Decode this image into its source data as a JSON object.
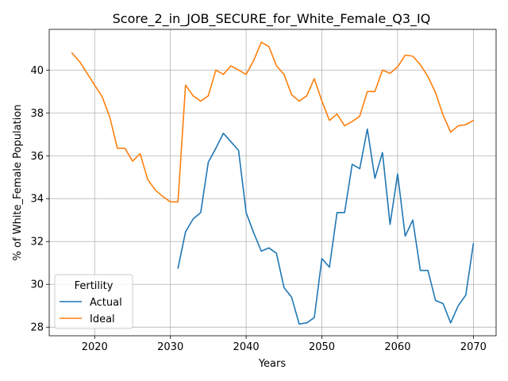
{
  "chart_data": {
    "type": "line",
    "title": "Score_2_in_JOB_SECURE_for_White_Female_Q3_IQ",
    "xlabel": "Years",
    "ylabel": "% of White_Female Population",
    "xlim": [
      2014,
      2073
    ],
    "ylim": [
      27.6,
      41.9
    ],
    "xticks": [
      2020,
      2030,
      2040,
      2050,
      2060,
      2070
    ],
    "yticks": [
      28,
      30,
      32,
      34,
      36,
      38,
      40
    ],
    "grid": true,
    "legend": {
      "title": "Fertility",
      "position": "lower-left"
    },
    "series": [
      {
        "name": "Actual",
        "color": "#1f77b4",
        "x": [
          2031,
          2032,
          2033,
          2034,
          2035,
          2036,
          2037,
          2038,
          2039,
          2040,
          2041,
          2042,
          2043,
          2044,
          2045,
          2046,
          2047,
          2048,
          2049,
          2050,
          2051,
          2052,
          2053,
          2054,
          2055,
          2056,
          2057,
          2058,
          2059,
          2060,
          2061,
          2062,
          2063,
          2064,
          2065,
          2066,
          2067,
          2068,
          2069,
          2070
        ],
        "y": [
          30.75,
          32.45,
          33.05,
          33.35,
          35.7,
          36.35,
          37.05,
          36.65,
          36.25,
          33.35,
          32.4,
          31.55,
          31.7,
          31.45,
          29.85,
          29.4,
          28.15,
          28.2,
          28.45,
          31.2,
          30.8,
          33.35,
          33.35,
          35.6,
          35.4,
          37.25,
          34.95,
          36.15,
          32.8,
          35.15,
          32.25,
          33.0,
          30.65,
          30.65,
          29.25,
          29.1,
          28.2,
          29.0,
          29.5,
          31.9
        ]
      },
      {
        "name": "Ideal",
        "color": "#ff7f0e",
        "x": [
          2017,
          2018,
          2019,
          2020,
          2021,
          2022,
          2023,
          2024,
          2025,
          2026,
          2027,
          2028,
          2029,
          2030,
          2031,
          2032,
          2033,
          2034,
          2035,
          2036,
          2037,
          2038,
          2039,
          2040,
          2041,
          2042,
          2043,
          2044,
          2045,
          2046,
          2047,
          2048,
          2049,
          2050,
          2051,
          2052,
          2053,
          2054,
          2055,
          2056,
          2057,
          2058,
          2059,
          2060,
          2061,
          2062,
          2063,
          2064,
          2065,
          2066,
          2067,
          2068,
          2069,
          2070
        ],
        "y": [
          40.8,
          40.4,
          39.85,
          39.3,
          38.75,
          37.8,
          36.35,
          36.35,
          35.75,
          36.1,
          34.9,
          34.4,
          34.1,
          33.85,
          33.85,
          39.3,
          38.8,
          38.55,
          38.8,
          40.0,
          39.8,
          40.2,
          40.0,
          39.8,
          40.45,
          41.3,
          41.1,
          40.2,
          39.8,
          38.85,
          38.55,
          38.8,
          39.6,
          38.55,
          37.65,
          37.95,
          37.4,
          37.6,
          37.85,
          39.0,
          39.0,
          40.0,
          39.85,
          40.15,
          40.7,
          40.65,
          40.25,
          39.7,
          38.95,
          37.9,
          37.1,
          37.4,
          37.45,
          37.65
        ]
      }
    ]
  }
}
